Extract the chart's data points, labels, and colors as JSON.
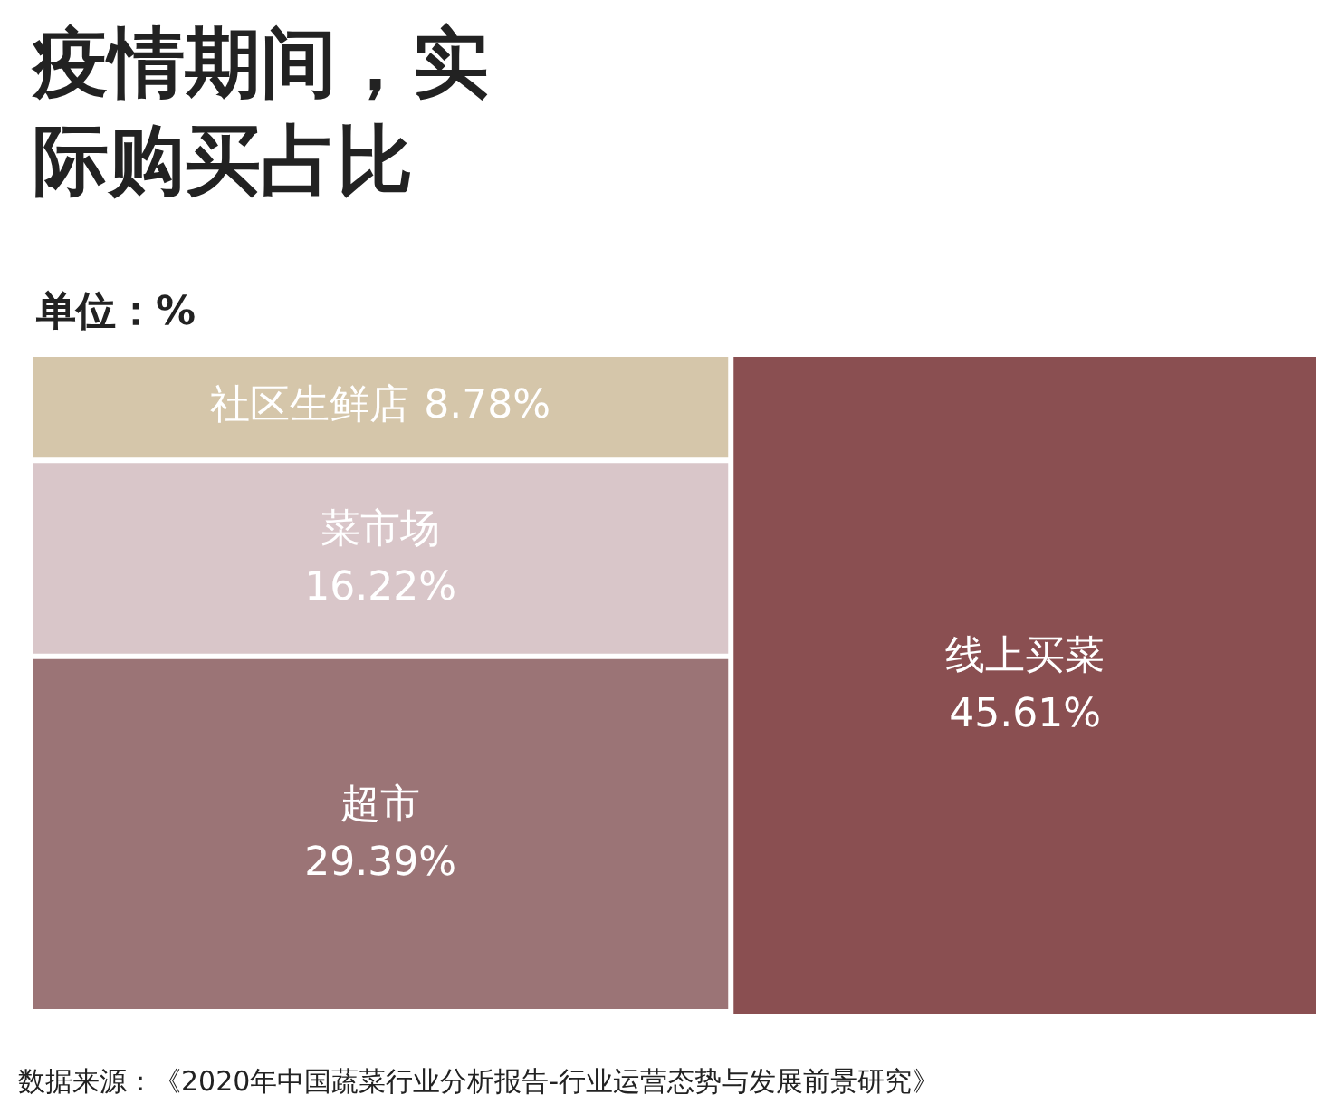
{
  "chart_data": {
    "type": "other",
    "title": "疫情期间，实际购买占比",
    "subtitle": "单位：%",
    "categories": [
      "社区生鲜店",
      "菜市场",
      "超市",
      "线上买菜"
    ],
    "values": [
      8.78,
      16.22,
      29.39,
      45.61
    ],
    "value_labels": [
      "8.78%",
      "16.22%",
      "29.39%",
      "45.61%"
    ],
    "colors": [
      "#d5c6aa",
      "#d9c6c9",
      "#9b7476",
      "#8a4f51"
    ],
    "annotations": [
      "数据来源：《2020年中国蔬菜行业分析报告-行业运营态势与发展前景研究》"
    ]
  }
}
